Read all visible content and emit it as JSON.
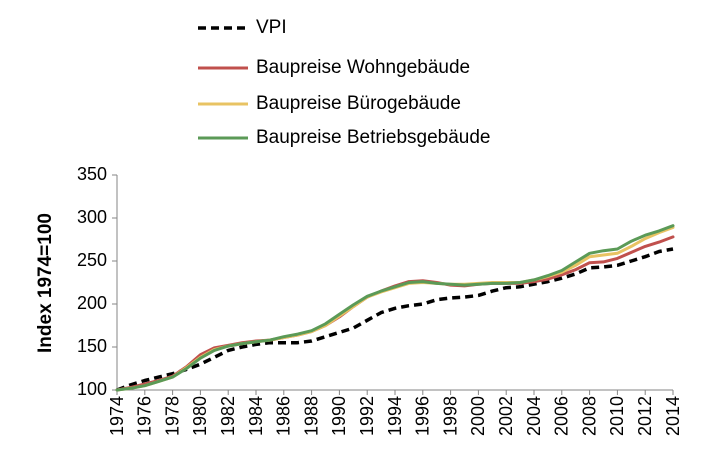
{
  "chart_data": {
    "type": "line",
    "title": "",
    "xlabel": "",
    "ylabel": "Index 1974=100",
    "ylim": [
      100,
      350
    ],
    "yticks": [
      100,
      150,
      200,
      250,
      300,
      350
    ],
    "xlim": [
      1974,
      2014
    ],
    "xticks": [
      "1974",
      "1976",
      "1978",
      "1980",
      "1982",
      "1984",
      "1986",
      "1988",
      "1990",
      "1992",
      "1994",
      "1996",
      "1998",
      "2000",
      "2002",
      "2004",
      "2006",
      "2008",
      "2010",
      "2012",
      "2014"
    ],
    "grid": false,
    "legend_position": "top",
    "x": [
      1974,
      1975,
      1976,
      1977,
      1978,
      1979,
      1980,
      1981,
      1982,
      1983,
      1984,
      1985,
      1986,
      1987,
      1988,
      1989,
      1990,
      1991,
      1992,
      1993,
      1994,
      1995,
      1996,
      1997,
      1998,
      1999,
      2000,
      2001,
      2002,
      2003,
      2004,
      2005,
      2006,
      2007,
      2008,
      2009,
      2010,
      2011,
      2012,
      2013,
      2014
    ],
    "series": [
      {
        "name": "VPI",
        "color": "#000000",
        "dash": true,
        "values": [
          100,
          106,
          111,
          115,
          119,
          124,
          130,
          138,
          146,
          150,
          153,
          155,
          155,
          155,
          157,
          162,
          167,
          172,
          181,
          190,
          195,
          198,
          200,
          205,
          207,
          208,
          210,
          215,
          219,
          220,
          223,
          226,
          230,
          235,
          242,
          243,
          245,
          250,
          255,
          261,
          264
        ]
      },
      {
        "name": "Baupreise Wohngebäude",
        "color": "#C0504D",
        "dash": false,
        "values": [
          100,
          103,
          107,
          111,
          116,
          127,
          141,
          149,
          152,
          155,
          157,
          158,
          161,
          164,
          168,
          175,
          185,
          197,
          208,
          215,
          221,
          226,
          227,
          225,
          222,
          221,
          223,
          224,
          224,
          224,
          226,
          229,
          234,
          240,
          248,
          249,
          253,
          260,
          267,
          272,
          278
        ]
      },
      {
        "name": "Baupreise Bürogebäude",
        "color": "#E8C363",
        "dash": false,
        "values": [
          100,
          102,
          105,
          110,
          115,
          126,
          138,
          147,
          151,
          154,
          156,
          158,
          161,
          164,
          168,
          175,
          186,
          197,
          208,
          214,
          219,
          224,
          225,
          224,
          223,
          223,
          224,
          225,
          225,
          225,
          228,
          232,
          237,
          245,
          255,
          257,
          259,
          267,
          276,
          283,
          289
        ]
      },
      {
        "name": "Baupreise Betriebsgebäude",
        "color": "#5B9A57",
        "dash": false,
        "values": [
          100,
          102,
          105,
          110,
          115,
          125,
          137,
          146,
          151,
          154,
          156,
          158,
          162,
          165,
          169,
          177,
          188,
          199,
          209,
          215,
          220,
          225,
          226,
          224,
          223,
          222,
          223,
          224,
          224,
          225,
          228,
          233,
          239,
          249,
          259,
          262,
          264,
          273,
          280,
          285,
          291
        ]
      }
    ]
  }
}
